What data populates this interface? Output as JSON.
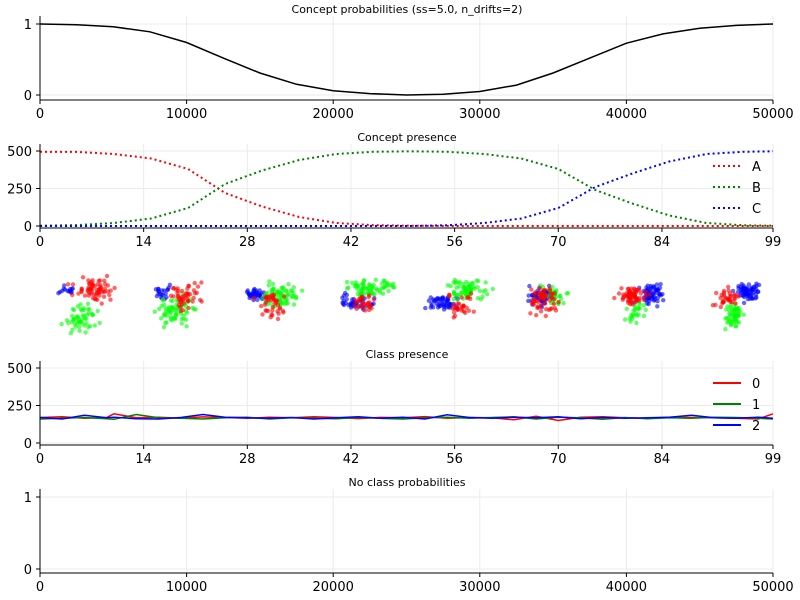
{
  "chart_data": [
    {
      "type": "line",
      "title": "Concept probabilities (ss=5.0, n_drifts=2)",
      "xlim": [
        0,
        50000
      ],
      "ylim": [
        0,
        1
      ],
      "xticks": [
        "0",
        "10000",
        "20000",
        "30000",
        "40000",
        "50000"
      ],
      "yticks": [
        "0",
        "1"
      ],
      "grid": true,
      "x": [
        0,
        2500,
        5000,
        7500,
        10000,
        12500,
        15000,
        17500,
        20000,
        22500,
        25000,
        27500,
        30000,
        32500,
        35000,
        37500,
        40000,
        42500,
        45000,
        47500,
        50000
      ],
      "series": [
        {
          "color": "#000000",
          "values": [
            1.0,
            0.99,
            0.96,
            0.89,
            0.74,
            0.52,
            0.31,
            0.15,
            0.06,
            0.02,
            0.0,
            0.01,
            0.05,
            0.14,
            0.31,
            0.52,
            0.73,
            0.86,
            0.94,
            0.98,
            1.0
          ]
        }
      ]
    },
    {
      "type": "line",
      "title": "Concept presence",
      "xlim": [
        0,
        99
      ],
      "ylim": [
        0,
        500
      ],
      "xticks": [
        "0",
        "14",
        "28",
        "42",
        "56",
        "70",
        "84",
        "99"
      ],
      "yticks": [
        "0",
        "250",
        "500"
      ],
      "grid": true,
      "legend": "right",
      "x": [
        0,
        5,
        10,
        15,
        20,
        25,
        30,
        35,
        40,
        45,
        50,
        55,
        60,
        65,
        70,
        75,
        80,
        85,
        90,
        95,
        99
      ],
      "series": [
        {
          "name": "A",
          "color": "#ff0000",
          "values": [
            495,
            494,
            480,
            450,
            380,
            220,
            130,
            60,
            20,
            6,
            2,
            0,
            0,
            0,
            0,
            0,
            0,
            0,
            0,
            0,
            0
          ]
        },
        {
          "name": "B",
          "color": "#008000",
          "values": [
            2,
            6,
            20,
            50,
            120,
            280,
            370,
            440,
            480,
            495,
            498,
            495,
            480,
            450,
            380,
            240,
            150,
            70,
            20,
            5,
            2
          ]
        },
        {
          "name": "C",
          "color": "#0000ff",
          "values": [
            0,
            0,
            0,
            0,
            0,
            0,
            0,
            0,
            0,
            0,
            0,
            5,
            20,
            50,
            120,
            260,
            350,
            430,
            480,
            495,
            498
          ]
        }
      ]
    },
    {
      "type": "scatter",
      "groups": 8,
      "points_per_color": 70,
      "colors": [
        "#ff0000",
        "#00ff00",
        "#0000ff"
      ],
      "mix": [
        {
          "r": 0.95,
          "g": 0.75,
          "b": 0.2
        },
        {
          "r": 0.7,
          "g": 0.95,
          "b": 0.3
        },
        {
          "r": 0.55,
          "g": 1.0,
          "b": 0.55
        },
        {
          "r": 0.4,
          "g": 1.0,
          "b": 0.6
        },
        {
          "r": 0.45,
          "g": 1.0,
          "b": 0.75
        },
        {
          "r": 0.8,
          "g": 0.55,
          "b": 0.85
        },
        {
          "r": 0.95,
          "g": 0.35,
          "b": 0.95
        },
        {
          "r": 0.5,
          "g": 0.8,
          "b": 1.0
        }
      ]
    },
    {
      "type": "line",
      "title": "Class presence",
      "xlim": [
        0,
        99
      ],
      "ylim": [
        0,
        500
      ],
      "xticks": [
        "0",
        "14",
        "28",
        "42",
        "56",
        "70",
        "84",
        "99"
      ],
      "yticks": [
        "0",
        "250",
        "500"
      ],
      "grid": true,
      "legend": "top-right",
      "x": [
        0,
        3,
        6,
        9,
        10,
        13,
        16,
        19,
        22,
        25,
        28,
        31,
        34,
        37,
        40,
        43,
        46,
        49,
        52,
        55,
        58,
        61,
        64,
        67,
        70,
        73,
        76,
        79,
        82,
        85,
        88,
        91,
        94,
        97,
        99
      ],
      "series": [
        {
          "name": "0",
          "color": "#ff0000",
          "values": [
            170,
            175,
            165,
            170,
            195,
            168,
            172,
            166,
            174,
            170,
            165,
            172,
            168,
            175,
            170,
            163,
            171,
            168,
            176,
            165,
            170,
            168,
            155,
            178,
            150,
            172,
            175,
            168,
            165,
            172,
            170,
            168,
            165,
            160,
            195
          ]
        },
        {
          "name": "1",
          "color": "#008000",
          "values": [
            160,
            165,
            170,
            162,
            158,
            190,
            168,
            165,
            160,
            168,
            172,
            160,
            168,
            165,
            162,
            170,
            165,
            160,
            168,
            172,
            165,
            170,
            175,
            160,
            172,
            168,
            158,
            170,
            162,
            168,
            165,
            172,
            170,
            165,
            160
          ]
        },
        {
          "name": "2",
          "color": "#0000ff",
          "values": [
            170,
            160,
            185,
            168,
            172,
            162,
            160,
            170,
            190,
            172,
            168,
            165,
            170,
            160,
            168,
            175,
            165,
            172,
            160,
            188,
            170,
            165,
            172,
            168,
            175,
            162,
            170,
            165,
            168,
            172,
            185,
            168,
            165,
            172,
            165
          ]
        }
      ]
    },
    {
      "type": "line",
      "title": "No class probabilities",
      "xlim": [
        0,
        50000
      ],
      "ylim": [
        0,
        1
      ],
      "xticks": [
        "0",
        "10000",
        "20000",
        "30000",
        "40000",
        "50000"
      ],
      "yticks": [
        "0",
        "1"
      ],
      "grid": true,
      "series": []
    }
  ]
}
